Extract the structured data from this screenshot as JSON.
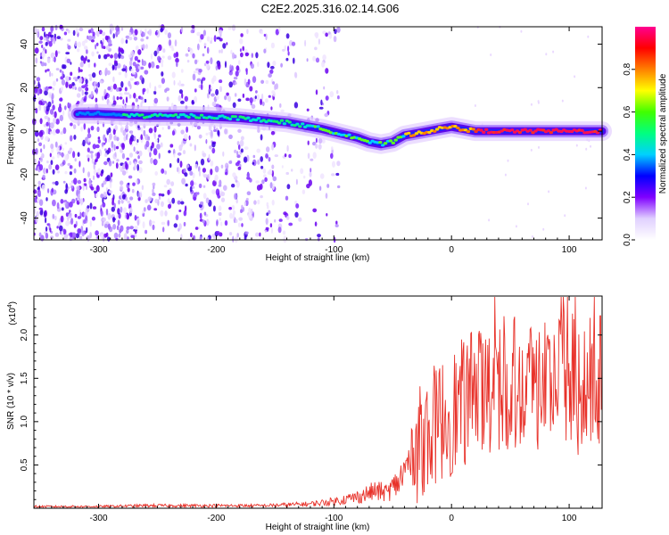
{
  "title": "C2E2.2025.316.02.14.G06",
  "chart_data": [
    {
      "type": "heatmap",
      "name": "spectrogram",
      "xlabel": "Height of straight line (km)",
      "ylabel": "Frequency (Hz)",
      "xlim": [
        -355,
        128
      ],
      "ylim": [
        -50,
        48
      ],
      "xticks": [
        -300,
        -200,
        -100,
        0,
        100
      ],
      "yticks": [
        -40,
        -20,
        0,
        20,
        40
      ],
      "ridge": [
        {
          "x": -318,
          "y": 8
        },
        {
          "x": -300,
          "y": 8
        },
        {
          "x": -280,
          "y": 7.5
        },
        {
          "x": -260,
          "y": 7
        },
        {
          "x": -240,
          "y": 7
        },
        {
          "x": -220,
          "y": 7
        },
        {
          "x": -200,
          "y": 6.5
        },
        {
          "x": -180,
          "y": 6
        },
        {
          "x": -160,
          "y": 5
        },
        {
          "x": -140,
          "y": 4
        },
        {
          "x": -125,
          "y": 2.5
        },
        {
          "x": -110,
          "y": 1
        },
        {
          "x": -95,
          "y": -1
        },
        {
          "x": -80,
          "y": -3
        },
        {
          "x": -70,
          "y": -5
        },
        {
          "x": -60,
          "y": -6
        },
        {
          "x": -50,
          "y": -5
        },
        {
          "x": -40,
          "y": -2
        },
        {
          "x": -30,
          "y": -1
        },
        {
          "x": -20,
          "y": 0
        },
        {
          "x": -10,
          "y": 1
        },
        {
          "x": 0,
          "y": 2
        },
        {
          "x": 10,
          "y": 1
        },
        {
          "x": 20,
          "y": 0
        },
        {
          "x": 40,
          "y": 0
        },
        {
          "x": 60,
          "y": 0
        },
        {
          "x": 80,
          "y": 0
        },
        {
          "x": 100,
          "y": 0
        },
        {
          "x": 128,
          "y": 0
        }
      ]
    },
    {
      "type": "colorbar",
      "name": "amplitude-colorbar",
      "label": "Normalized spectral amplitude",
      "range": [
        0,
        1
      ],
      "ticks": [
        "0.0",
        "0.2",
        "0.4",
        "0.6",
        "0.8"
      ],
      "tick_values": [
        0,
        0.2,
        0.4,
        0.6,
        0.8
      ],
      "colors": [
        "#ffffff",
        "#e0d0ff",
        "#8000ff",
        "#0000ff",
        "#00d0ff",
        "#00ff80",
        "#40ff00",
        "#ffff00",
        "#ff8000",
        "#ff0000",
        "#ff0090"
      ]
    },
    {
      "type": "line",
      "name": "snr",
      "xlabel": "Height of straight line (km)",
      "ylabel": "SNR (10 * v/v)",
      "multiplier": "(x10",
      "multiplier_exp": "4",
      "multiplier_close": ")",
      "xlim": [
        -355,
        128
      ],
      "ylim": [
        0.0,
        2.45
      ],
      "xticks": [
        -300,
        -200,
        -100,
        0,
        100
      ],
      "yticks": [
        "0.5",
        "1.0",
        "1.5",
        "2.0"
      ],
      "ytick_values": [
        0.5,
        1.0,
        1.5,
        2.0
      ],
      "color": "#e8322a",
      "envelope": [
        {
          "x": -355,
          "y": 0.02
        },
        {
          "x": -300,
          "y": 0.02
        },
        {
          "x": -260,
          "y": 0.03
        },
        {
          "x": -220,
          "y": 0.03
        },
        {
          "x": -160,
          "y": 0.03
        },
        {
          "x": -120,
          "y": 0.05
        },
        {
          "x": -100,
          "y": 0.08
        },
        {
          "x": -80,
          "y": 0.13
        },
        {
          "x": -65,
          "y": 0.2
        },
        {
          "x": -55,
          "y": 0.18
        },
        {
          "x": -45,
          "y": 0.3
        },
        {
          "x": -35,
          "y": 0.55
        },
        {
          "x": -25,
          "y": 0.8
        },
        {
          "x": -15,
          "y": 0.95
        },
        {
          "x": -5,
          "y": 1.05
        },
        {
          "x": 5,
          "y": 1.15
        },
        {
          "x": 15,
          "y": 1.25
        },
        {
          "x": 25,
          "y": 1.35
        },
        {
          "x": 35,
          "y": 1.45
        },
        {
          "x": 45,
          "y": 1.5
        },
        {
          "x": 60,
          "y": 1.5
        },
        {
          "x": 80,
          "y": 1.45
        },
        {
          "x": 100,
          "y": 1.45
        },
        {
          "x": 115,
          "y": 1.4
        },
        {
          "x": 128,
          "y": 1.45
        }
      ]
    }
  ]
}
